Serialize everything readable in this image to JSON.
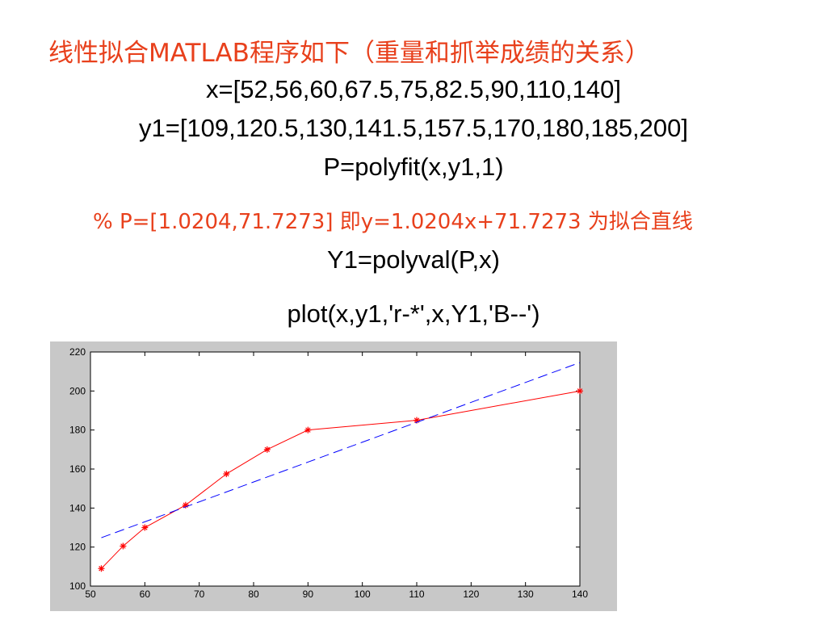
{
  "slide": {
    "title": "线性拟合MATLAB程序如下（重量和抓举成绩的关系）",
    "code_x": "x=[52,56,60,67.5,75,82.5,90,110,140]",
    "code_y1": "y1=[109,120.5,130,141.5,157.5,170,180,185,200]",
    "code_polyfit": "P=polyfit(x,y1,1)",
    "comment": "% P=[1.0204,71.7273] 即y=1.0204x+71.7273 为拟合直线",
    "code_polyval": "Y1=polyval(P,x)",
    "code_plot": "plot(x,y1,'r-*',x,Y1,'B--')"
  },
  "colors": {
    "title": "#e8401c",
    "data_series": "#ff0000",
    "fit_series": "#0000ff",
    "figure_background": "#c8c8c8",
    "axes_background": "#ffffff"
  },
  "chart_data": {
    "type": "line",
    "xlim": [
      50,
      140
    ],
    "ylim": [
      100,
      220
    ],
    "xticks": [
      50,
      60,
      70,
      80,
      90,
      100,
      110,
      120,
      130,
      140
    ],
    "yticks": [
      100,
      120,
      140,
      160,
      180,
      200,
      220
    ],
    "series": [
      {
        "x": [
          52,
          56,
          60,
          67.5,
          75,
          82.5,
          90,
          110,
          140
        ],
        "y": [
          109,
          120.5,
          130,
          141.5,
          157.5,
          170,
          180,
          185,
          200
        ],
        "color": "#ff0000",
        "line": "solid",
        "marker": "*"
      },
      {
        "x": [
          52,
          140
        ],
        "y": [
          124.79,
          214.58
        ],
        "color": "#0000ff",
        "line": "dashed",
        "marker": "none"
      }
    ],
    "grid": false
  }
}
